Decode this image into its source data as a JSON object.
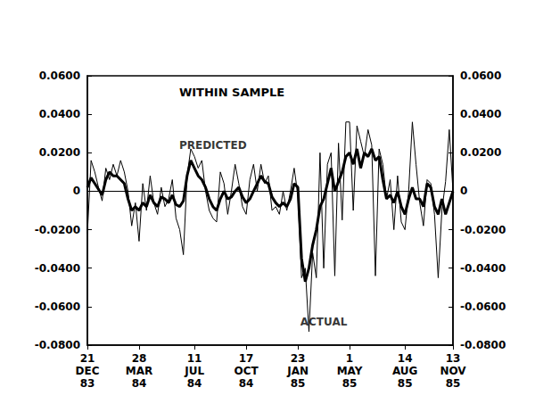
{
  "chart_data": {
    "type": "line",
    "title": "WITHIN SAMPLE",
    "categories": [
      "21\nDEC\n83",
      null,
      null,
      null,
      null,
      null,
      null,
      null,
      null,
      null,
      null,
      null,
      null,
      null,
      "28\nMAR\n84",
      null,
      null,
      null,
      null,
      null,
      null,
      null,
      null,
      null,
      null,
      null,
      null,
      null,
      null,
      "11\nJUL\n84",
      null,
      null,
      null,
      null,
      null,
      null,
      null,
      null,
      null,
      null,
      null,
      null,
      null,
      "17\nOCT\n84",
      null,
      null,
      null,
      null,
      null,
      null,
      null,
      null,
      null,
      null,
      null,
      null,
      null,
      "23\nJAN\n85",
      null,
      null,
      null,
      null,
      null,
      null,
      null,
      null,
      null,
      null,
      null,
      null,
      null,
      "1\nMAY\n85",
      null,
      null,
      null,
      null,
      null,
      null,
      null,
      null,
      null,
      null,
      null,
      null,
      null,
      null,
      "14\nAUG\n85",
      null,
      null,
      null,
      null,
      null,
      null,
      null,
      null,
      null,
      null,
      null,
      null,
      "13\nNOV\n85"
    ],
    "series": [
      {
        "name": "PREDICTED",
        "color": "#000000",
        "line_style": "thick",
        "values": [
          0.002,
          0.007,
          0.004,
          0.001,
          -0.002,
          0.006,
          0.01,
          0.008,
          0.008,
          0.006,
          0.004,
          -0.004,
          -0.01,
          -0.008,
          -0.01,
          -0.006,
          -0.008,
          -0.002,
          -0.006,
          -0.008,
          -0.003,
          -0.004,
          -0.006,
          -0.002,
          -0.007,
          -0.008,
          -0.005,
          0.008,
          0.016,
          0.012,
          0.008,
          0.006,
          0.002,
          -0.004,
          -0.008,
          -0.01,
          -0.004,
          0.0,
          -0.004,
          -0.003,
          0.0,
          0.002,
          -0.003,
          -0.006,
          -0.004,
          0.0,
          0.004,
          0.008,
          0.005,
          0.004,
          -0.003,
          -0.006,
          -0.008,
          -0.006,
          -0.008,
          -0.004,
          0.004,
          0.002,
          -0.035,
          -0.047,
          -0.04,
          -0.028,
          -0.02,
          -0.008,
          -0.004,
          0.004,
          0.012,
          0.0,
          0.005,
          0.01,
          0.018,
          0.02,
          0.014,
          0.022,
          0.012,
          0.02,
          0.018,
          0.022,
          0.016,
          0.018,
          0.006,
          -0.004,
          -0.002,
          -0.006,
          0.0,
          -0.008,
          -0.012,
          -0.004,
          0.002,
          -0.004,
          -0.004,
          -0.008,
          0.004,
          0.002,
          -0.008,
          -0.012,
          -0.004,
          -0.012,
          -0.006,
          0.0
        ]
      },
      {
        "name": "ACTUAL",
        "color": "#000000",
        "line_style": "thin",
        "values": [
          -0.022,
          0.016,
          0.01,
          0.002,
          -0.005,
          0.012,
          0.006,
          0.014,
          0.008,
          0.016,
          0.01,
          0.0,
          -0.018,
          -0.006,
          -0.026,
          0.004,
          -0.01,
          0.008,
          -0.006,
          -0.012,
          0.002,
          -0.008,
          -0.004,
          0.006,
          -0.014,
          -0.02,
          -0.033,
          0.008,
          0.022,
          0.018,
          0.012,
          0.016,
          0.0,
          -0.01,
          -0.014,
          -0.016,
          0.01,
          0.004,
          -0.012,
          0.0,
          0.014,
          0.004,
          -0.008,
          -0.012,
          0.006,
          0.014,
          0.0,
          0.014,
          0.004,
          0.008,
          -0.01,
          -0.008,
          -0.012,
          0.0,
          -0.01,
          0.0,
          0.012,
          -0.002,
          -0.045,
          -0.04,
          -0.073,
          -0.032,
          -0.045,
          0.02,
          -0.04,
          0.014,
          0.02,
          -0.044,
          0.025,
          -0.015,
          0.036,
          0.036,
          -0.01,
          0.034,
          0.026,
          0.018,
          0.032,
          0.024,
          -0.044,
          0.022,
          0.014,
          -0.004,
          0.006,
          -0.02,
          0.008,
          -0.016,
          -0.02,
          0.0,
          0.036,
          0.014,
          -0.006,
          -0.018,
          0.006,
          0.004,
          -0.012,
          -0.045,
          -0.01,
          0.005,
          0.032,
          0.0
        ]
      }
    ],
    "annotations": [
      {
        "text": "PREDICTED",
        "x": 34,
        "y": 0.024
      },
      {
        "text": "ACTUAL",
        "x": 64,
        "y": -0.068
      }
    ],
    "ylim": [
      -0.08,
      0.06
    ],
    "yticks": [
      {
        "value": -0.08,
        "label": "-0.0800"
      },
      {
        "value": -0.06,
        "label": "-0.0600"
      },
      {
        "value": -0.04,
        "label": "-0.0400"
      },
      {
        "value": -0.02,
        "label": "-0.0200"
      },
      0,
      {
        "value": 0.02,
        "label": "0.0200"
      },
      {
        "value": 0.04,
        "label": "0.0400"
      },
      {
        "value": 0.06,
        "label": "0.0600"
      }
    ],
    "y2lim": [
      -0.08,
      0.06
    ],
    "y2ticks": [
      {
        "value": -0.08,
        "label": "-0.0800"
      },
      {
        "value": -0.06,
        "label": "-0.0600"
      },
      {
        "value": -0.04,
        "label": "-0.0400"
      },
      {
        "value": -0.02,
        "label": "-0.0200"
      },
      0,
      {
        "value": 0.02,
        "label": "0.0200"
      },
      {
        "value": 0.04,
        "label": "0.0400"
      },
      {
        "value": 0.06,
        "label": "0.0600"
      }
    ],
    "grid": false,
    "legend": false
  }
}
